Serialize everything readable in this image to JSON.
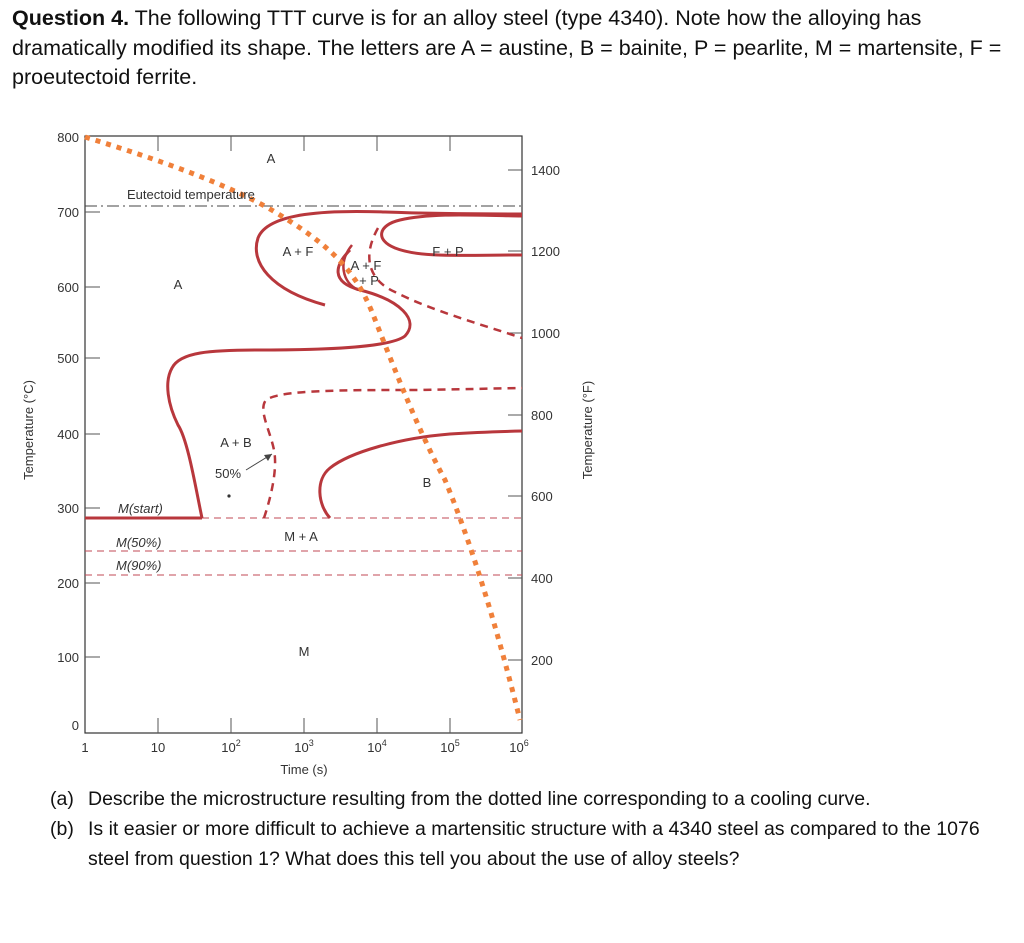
{
  "question": {
    "label": "Question 4.",
    "text": "The following TTT curve is for an alloy steel (type 4340). Note how the alloying has dramatically modified its shape. The letters are A = austine, B = bainite, P = pearlite, M = martensite, F = proeutectoid ferrite."
  },
  "chart_data": {
    "type": "line",
    "xscale": "log",
    "xlabel": "Time (s)",
    "ylabel": "Temperature (°C)",
    "y2label": "Temperature (°F)",
    "xlim": [
      1,
      1000000
    ],
    "ylim": [
      0,
      800
    ],
    "x_ticks": [
      "1",
      "10",
      "10",
      "10",
      "10",
      "10",
      "10"
    ],
    "x_tick_exponents": [
      "",
      "",
      "2",
      "3",
      "4",
      "5",
      "6"
    ],
    "y_ticks": [
      "0",
      "100",
      "200",
      "300",
      "400",
      "500",
      "600",
      "700",
      "800"
    ],
    "y2_ticks": [
      "200",
      "400",
      "600",
      "800",
      "1000",
      "1200",
      "1400"
    ],
    "reference_lines": [
      {
        "label": "Eutectoid temperature",
        "y": 727
      },
      {
        "label": "M(start)",
        "y": 300
      },
      {
        "label": "M(50%)",
        "y": 265
      },
      {
        "label": "M(90%)",
        "y": 230
      }
    ],
    "region_labels": [
      "A",
      "A",
      "A + F",
      "A + F",
      "+ P",
      "F + P",
      "A + B",
      "50%",
      "B",
      "M + A",
      "M"
    ],
    "series": [
      {
        "values": [
          [
            6.5,
            300
          ],
          [
            6.5,
            400
          ],
          [
            5,
            470
          ],
          [
            8,
            510
          ],
          [
            400,
            510
          ],
          [
            6000,
            520
          ]
        ]
      },
      {
        "values": [
          [
            80,
            700
          ],
          [
            500,
            705
          ],
          [
            1800,
            680
          ],
          [
            5000,
            670
          ],
          [
            80000,
            680
          ],
          [
            280000,
            688
          ]
        ]
      },
      {
        "values": [
          [
            25000,
            480
          ],
          [
            3500,
            445
          ],
          [
            6000,
            410
          ],
          [
            100000,
            410
          ],
          [
            300000,
            420
          ]
        ]
      },
      {
        "values": [
          [
            1.2,
            790
          ],
          [
            100,
            700
          ],
          [
            1000,
            630
          ],
          [
            10000,
            500
          ],
          [
            100000,
            300
          ],
          [
            250000,
            70
          ],
          [
            300000,
            20
          ]
        ]
      }
    ]
  },
  "parts": [
    {
      "label": "(a)",
      "text": "Describe the microstructure resulting from the dotted line corresponding to a cooling curve."
    },
    {
      "label": "(b)",
      "text": "Is it easier or more difficult to achieve a martensitic structure with a 4340 steel as compared to the 1076 steel from question 1? What does this tell you about the use of alloy steels?"
    }
  ],
  "colors": {
    "curve": "#b8373c",
    "cooling_path": "#f0803a",
    "axis": "#333333"
  }
}
